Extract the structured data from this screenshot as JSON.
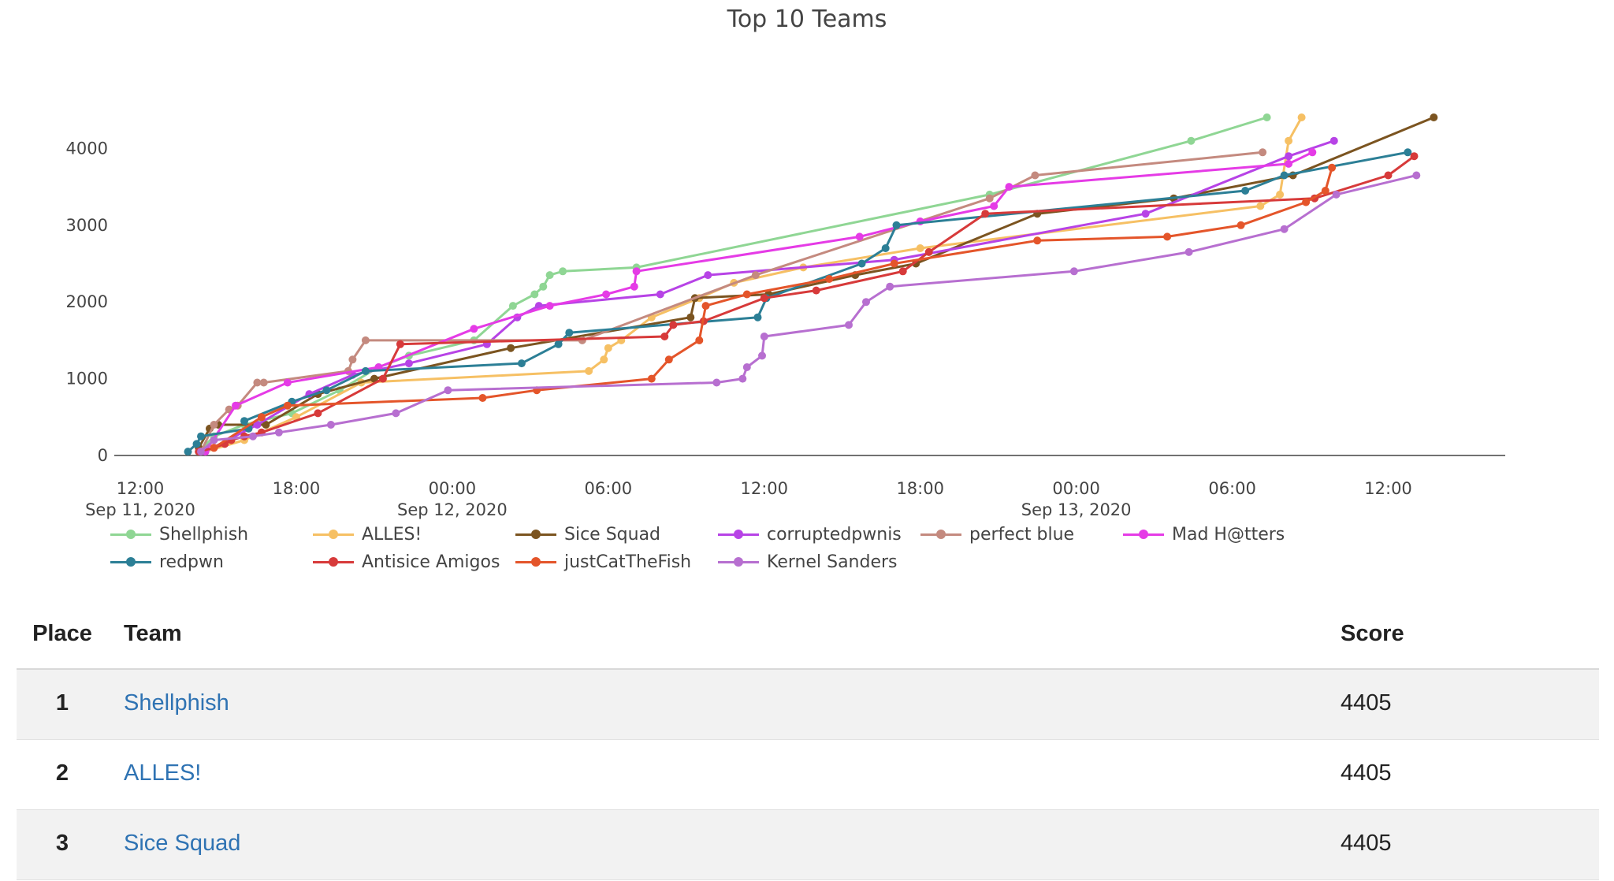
{
  "chart_data": {
    "type": "line",
    "title": "Top 10 Teams",
    "xlabel": "",
    "ylabel": "",
    "ylim": [
      0,
      4600
    ],
    "xlim": [
      "2020-09-11 11:00",
      "2020-09-13 16:30"
    ],
    "yticks": [
      0,
      1000,
      2000,
      3000,
      4000
    ],
    "xticks": [
      {
        "t": "2020-09-11 12:00",
        "line1": "12:00",
        "line2": "Sep 11, 2020"
      },
      {
        "t": "2020-09-11 18:00",
        "line1": "18:00",
        "line2": ""
      },
      {
        "t": "2020-09-12 00:00",
        "line1": "00:00",
        "line2": "Sep 12, 2020"
      },
      {
        "t": "2020-09-12 06:00",
        "line1": "06:00",
        "line2": ""
      },
      {
        "t": "2020-09-12 12:00",
        "line1": "12:00",
        "line2": ""
      },
      {
        "t": "2020-09-12 18:00",
        "line1": "18:00",
        "line2": ""
      },
      {
        "t": "2020-09-13 00:00",
        "line1": "00:00",
        "line2": "Sep 13, 2020"
      },
      {
        "t": "2020-09-13 06:00",
        "line1": "06:00",
        "line2": ""
      },
      {
        "t": "2020-09-13 12:00",
        "line1": "12:00",
        "line2": ""
      }
    ],
    "legend_position": "bottom",
    "series": [
      {
        "name": "Shellphish",
        "color": "#8fd694",
        "x": [
          "2020-09-11 14:15",
          "2020-09-11 14:50",
          "2020-09-11 16:00",
          "2020-09-11 17:50",
          "2020-09-11 19:40",
          "2020-09-11 21:10",
          "2020-09-11 22:20",
          "2020-09-12 00:50",
          "2020-09-12 02:20",
          "2020-09-12 03:10",
          "2020-09-12 03:30",
          "2020-09-12 03:45",
          "2020-09-12 04:15",
          "2020-09-12 07:05",
          "2020-09-12 20:40",
          "2020-09-13 04:25",
          "2020-09-13 07:20"
        ],
        "y": [
          50,
          250,
          400,
          550,
          850,
          1150,
          1300,
          1500,
          1950,
          2100,
          2200,
          2350,
          2400,
          2450,
          3400,
          4100,
          4405
        ]
      },
      {
        "name": "ALLES!",
        "color": "#f6c064",
        "x": [
          "2020-09-11 14:30",
          "2020-09-11 16:00",
          "2020-09-11 18:00",
          "2020-09-11 20:30",
          "2020-09-12 05:15",
          "2020-09-12 05:50",
          "2020-09-12 06:00",
          "2020-09-12 06:30",
          "2020-09-12 07:40",
          "2020-09-12 09:30",
          "2020-09-12 10:50",
          "2020-09-12 13:30",
          "2020-09-12 18:00",
          "2020-09-13 07:05",
          "2020-09-13 07:50",
          "2020-09-13 08:10",
          "2020-09-13 08:40"
        ],
        "y": [
          50,
          200,
          500,
          950,
          1100,
          1250,
          1400,
          1500,
          1800,
          2050,
          2250,
          2450,
          2700,
          3250,
          3400,
          4100,
          4405
        ]
      },
      {
        "name": "Sice Squad",
        "color": "#7b5420",
        "x": [
          "2020-09-11 14:15",
          "2020-09-11 14:40",
          "2020-09-11 15:00",
          "2020-09-11 16:50",
          "2020-09-11 18:50",
          "2020-09-11 21:00",
          "2020-09-12 02:15",
          "2020-09-12 09:10",
          "2020-09-12 09:20",
          "2020-09-12 12:10",
          "2020-09-12 15:30",
          "2020-09-12 17:50",
          "2020-09-12 22:30",
          "2020-09-13 03:45",
          "2020-09-13 08:20",
          "2020-09-13 13:45"
        ],
        "y": [
          100,
          350,
          400,
          400,
          800,
          1000,
          1400,
          1800,
          2050,
          2100,
          2350,
          2500,
          3150,
          3350,
          3650,
          4405
        ]
      },
      {
        "name": "corruptedpwnis",
        "color": "#b743e6",
        "x": [
          "2020-09-11 14:30",
          "2020-09-11 16:30",
          "2020-09-11 18:30",
          "2020-09-11 20:10",
          "2020-09-11 22:20",
          "2020-09-12 01:20",
          "2020-09-12 02:30",
          "2020-09-12 03:20",
          "2020-09-12 08:00",
          "2020-09-12 09:50",
          "2020-09-12 17:00",
          "2020-09-13 02:40",
          "2020-09-13 08:10",
          "2020-09-13 09:55"
        ],
        "y": [
          50,
          400,
          800,
          1050,
          1200,
          1450,
          1800,
          1950,
          2100,
          2350,
          2550,
          3150,
          3900,
          4100
        ]
      },
      {
        "name": "perfect blue",
        "color": "#c48a7f",
        "x": [
          "2020-09-11 14:20",
          "2020-09-11 14:50",
          "2020-09-11 15:25",
          "2020-09-11 15:45",
          "2020-09-11 16:30",
          "2020-09-11 16:45",
          "2020-09-11 20:00",
          "2020-09-11 20:10",
          "2020-09-11 20:40",
          "2020-09-12 05:00",
          "2020-09-12 11:40",
          "2020-09-12 20:40",
          "2020-09-12 22:25",
          "2020-09-13 07:10"
        ],
        "y": [
          50,
          400,
          600,
          650,
          950,
          950,
          1100,
          1250,
          1500,
          1500,
          2350,
          3350,
          3650,
          3950
        ]
      },
      {
        "name": "Mad H@tters",
        "color": "#e53be6",
        "x": [
          "2020-09-11 14:30",
          "2020-09-11 15:40",
          "2020-09-11 17:40",
          "2020-09-11 21:10",
          "2020-09-12 00:50",
          "2020-09-12 03:45",
          "2020-09-12 05:55",
          "2020-09-12 07:00",
          "2020-09-12 07:05",
          "2020-09-12 15:40",
          "2020-09-12 18:00",
          "2020-09-12 20:50",
          "2020-09-12 21:25",
          "2020-09-13 08:10",
          "2020-09-13 09:05"
        ],
        "y": [
          50,
          650,
          950,
          1150,
          1650,
          1950,
          2100,
          2200,
          2400,
          2850,
          3050,
          3250,
          3500,
          3800,
          3950
        ]
      },
      {
        "name": "redpwn",
        "color": "#2c7f96",
        "x": [
          "2020-09-11 13:50",
          "2020-09-11 14:10",
          "2020-09-11 14:20",
          "2020-09-11 16:10",
          "2020-09-11 16:00",
          "2020-09-11 17:50",
          "2020-09-11 19:10",
          "2020-09-11 20:40",
          "2020-09-12 02:40",
          "2020-09-12 04:05",
          "2020-09-12 04:30",
          "2020-09-12 11:45",
          "2020-09-12 12:05",
          "2020-09-12 15:45",
          "2020-09-12 16:40",
          "2020-09-12 17:05",
          "2020-09-13 06:30",
          "2020-09-13 08:00",
          "2020-09-13 12:45"
        ],
        "y": [
          50,
          150,
          250,
          350,
          450,
          700,
          850,
          1100,
          1200,
          1450,
          1600,
          1800,
          2050,
          2500,
          2700,
          3000,
          3450,
          3650,
          3950
        ]
      },
      {
        "name": "Antisice Amigos",
        "color": "#d73a3a",
        "x": [
          "2020-09-11 14:15",
          "2020-09-11 14:50",
          "2020-09-11 15:15",
          "2020-09-11 15:30",
          "2020-09-11 16:00",
          "2020-09-11 16:40",
          "2020-09-11 18:50",
          "2020-09-11 21:20",
          "2020-09-11 22:00",
          "2020-09-12 08:10",
          "2020-09-12 08:30",
          "2020-09-12 09:40",
          "2020-09-12 12:00",
          "2020-09-12 14:00",
          "2020-09-12 17:20",
          "2020-09-12 18:20",
          "2020-09-12 20:30",
          "2020-09-13 09:10",
          "2020-09-13 12:00",
          "2020-09-13 13:00"
        ],
        "y": [
          50,
          100,
          150,
          200,
          250,
          300,
          550,
          1000,
          1450,
          1550,
          1700,
          1750,
          2050,
          2150,
          2400,
          2650,
          3150,
          3350,
          3650,
          3900
        ]
      },
      {
        "name": "justCatTheFish",
        "color": "#e4552a",
        "x": [
          "2020-09-11 14:50",
          "2020-09-11 16:40",
          "2020-09-11 17:40",
          "2020-09-12 01:10",
          "2020-09-12 03:15",
          "2020-09-12 07:40",
          "2020-09-12 08:20",
          "2020-09-12 09:30",
          "2020-09-12 09:45",
          "2020-09-12 11:20",
          "2020-09-12 14:30",
          "2020-09-12 17:00",
          "2020-09-12 22:30",
          "2020-09-13 03:30",
          "2020-09-13 06:20",
          "2020-09-13 08:50",
          "2020-09-13 09:35",
          "2020-09-13 09:50"
        ],
        "y": [
          100,
          500,
          650,
          750,
          850,
          1000,
          1250,
          1500,
          1950,
          2100,
          2300,
          2500,
          2800,
          2850,
          3000,
          3300,
          3450,
          3750
        ]
      },
      {
        "name": "Kernel Sanders",
        "color": "#b76fd0",
        "x": [
          "2020-09-11 14:20",
          "2020-09-11 14:50",
          "2020-09-11 16:20",
          "2020-09-11 17:20",
          "2020-09-11 19:20",
          "2020-09-11 21:50",
          "2020-09-11 23:50",
          "2020-09-12 10:10",
          "2020-09-12 11:10",
          "2020-09-12 11:20",
          "2020-09-12 11:55",
          "2020-09-12 12:00",
          "2020-09-12 15:15",
          "2020-09-12 15:55",
          "2020-09-12 16:50",
          "2020-09-12 23:55",
          "2020-09-13 04:20",
          "2020-09-13 08:00",
          "2020-09-13 10:00",
          "2020-09-13 13:05"
        ],
        "y": [
          50,
          200,
          250,
          300,
          400,
          550,
          850,
          950,
          1000,
          1150,
          1300,
          1550,
          1700,
          2000,
          2200,
          2400,
          2650,
          2950,
          3400,
          3650
        ]
      }
    ]
  },
  "legend_rows": [
    [
      "Shellphish",
      "ALLES!",
      "Sice Squad",
      "corruptedpwnis",
      "perfect blue",
      "Mad H@tters"
    ],
    [
      "redpwn",
      "Antisice Amigos",
      "justCatTheFish",
      "Kernel Sanders"
    ]
  ],
  "legend_colors": {
    "Shellphish": "#8fd694",
    "ALLES!": "#f6c064",
    "Sice Squad": "#7b5420",
    "corruptedpwnis": "#b743e6",
    "perfect blue": "#c48a7f",
    "Mad H@tters": "#e53be6",
    "redpwn": "#2c7f96",
    "Antisice Amigos": "#d73a3a",
    "justCatTheFish": "#e4552a",
    "Kernel Sanders": "#b76fd0"
  },
  "scoreboard": {
    "headers": {
      "place": "Place",
      "team": "Team",
      "score": "Score"
    },
    "rows": [
      {
        "place": "1",
        "team": "Shellphish",
        "score": "4405"
      },
      {
        "place": "2",
        "team": "ALLES!",
        "score": "4405"
      },
      {
        "place": "3",
        "team": "Sice Squad",
        "score": "4405"
      }
    ]
  }
}
